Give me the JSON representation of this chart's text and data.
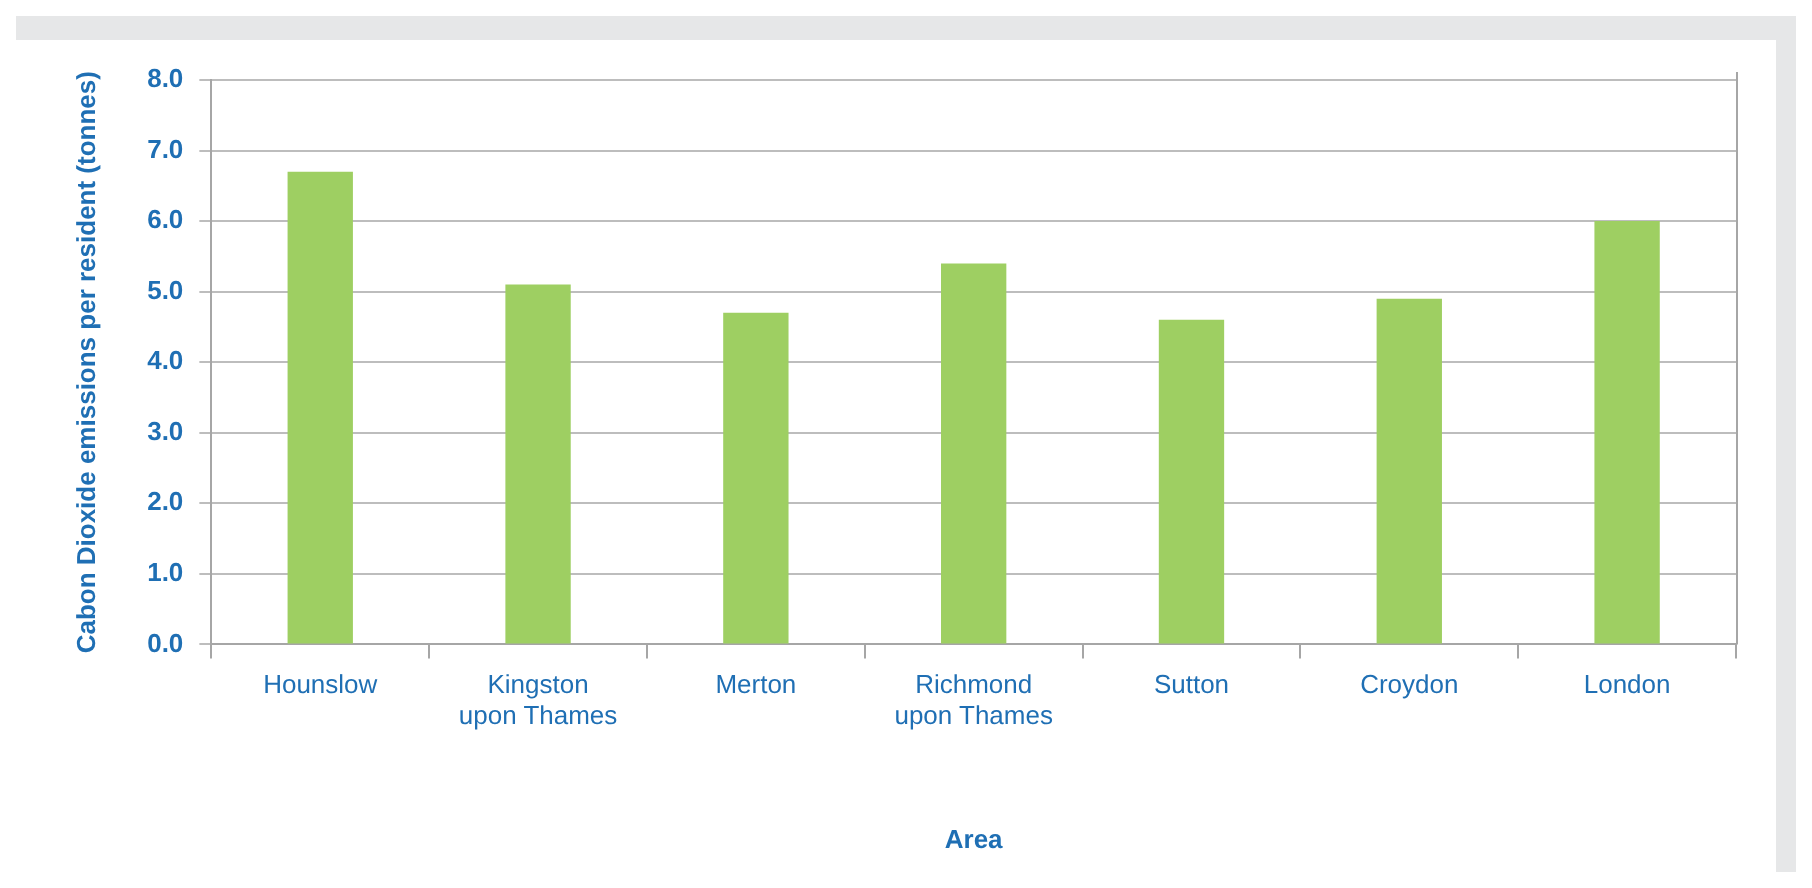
{
  "chart_data": {
    "type": "bar",
    "xlabel": "Area",
    "ylabel": "Cabon Dioxide emissions per resident (tonnes)",
    "categories": [
      "Hounslow",
      "Kingston upon Thames",
      "Merton",
      "Richmond upon Thames",
      "Sutton",
      "Croydon",
      "London"
    ],
    "values": [
      6.7,
      5.1,
      4.7,
      5.4,
      4.6,
      4.9,
      6.0
    ],
    "color": "#9ecf62",
    "ylim": [
      0,
      8
    ],
    "yticks": [
      {
        "value": 0,
        "label": "0.0"
      },
      {
        "value": 1,
        "label": "1.0"
      },
      {
        "value": 2,
        "label": "2.0"
      },
      {
        "value": 3,
        "label": "3.0"
      },
      {
        "value": 4,
        "label": "4.0"
      },
      {
        "value": 5,
        "label": "5.0"
      },
      {
        "value": 6,
        "label": "6.0"
      },
      {
        "value": 7,
        "label": "7.0"
      },
      {
        "value": 8,
        "label": "8.0"
      }
    ],
    "grid": "y",
    "legend": false
  }
}
